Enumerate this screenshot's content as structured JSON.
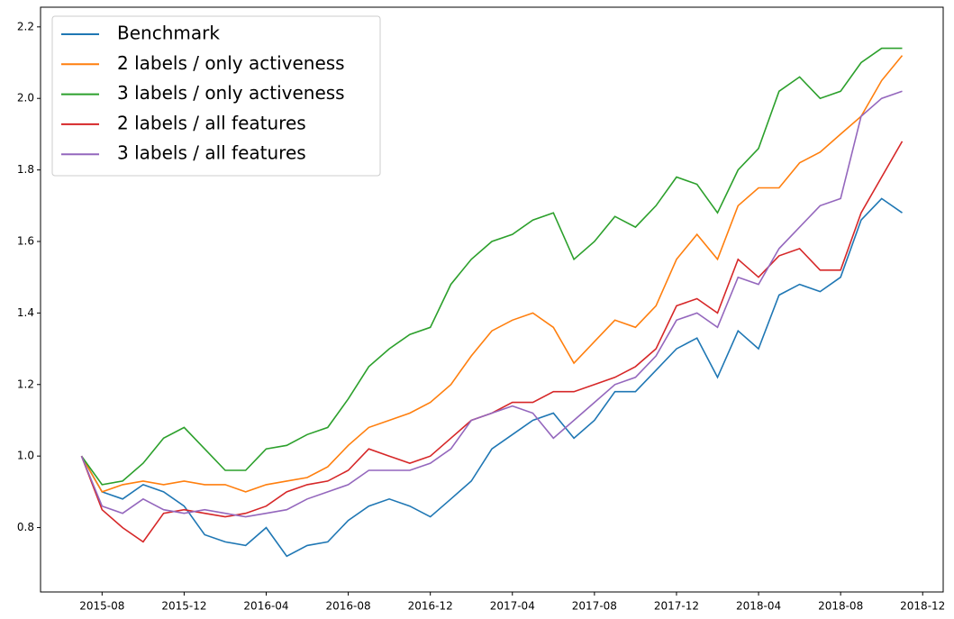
{
  "chart_data": {
    "type": "line",
    "x": [
      "2015-07",
      "2015-08",
      "2015-09",
      "2015-10",
      "2015-11",
      "2015-12",
      "2016-01",
      "2016-02",
      "2016-03",
      "2016-04",
      "2016-05",
      "2016-06",
      "2016-07",
      "2016-08",
      "2016-09",
      "2016-10",
      "2016-11",
      "2016-12",
      "2017-01",
      "2017-02",
      "2017-03",
      "2017-04",
      "2017-05",
      "2017-06",
      "2017-07",
      "2017-08",
      "2017-09",
      "2017-10",
      "2017-11",
      "2017-12",
      "2018-01",
      "2018-02",
      "2018-03",
      "2018-04",
      "2018-05",
      "2018-06",
      "2018-07",
      "2018-08",
      "2018-09",
      "2018-10",
      "2018-11"
    ],
    "series": [
      {
        "name": "Benchmark",
        "color": "#1f77b4",
        "values": [
          1.0,
          0.9,
          0.88,
          0.92,
          0.9,
          0.86,
          0.78,
          0.76,
          0.75,
          0.8,
          0.72,
          0.75,
          0.76,
          0.82,
          0.86,
          0.88,
          0.86,
          0.83,
          0.88,
          0.93,
          1.02,
          1.06,
          1.1,
          1.12,
          1.05,
          1.1,
          1.18,
          1.18,
          1.24,
          1.3,
          1.33,
          1.22,
          1.35,
          1.3,
          1.45,
          1.48,
          1.46,
          1.5,
          1.66,
          1.72,
          1.68
        ]
      },
      {
        "name": "2 labels / only activeness",
        "color": "#ff7f0e",
        "values": [
          1.0,
          0.9,
          0.92,
          0.93,
          0.92,
          0.93,
          0.92,
          0.92,
          0.9,
          0.92,
          0.93,
          0.94,
          0.97,
          1.03,
          1.08,
          1.1,
          1.12,
          1.15,
          1.2,
          1.28,
          1.35,
          1.38,
          1.4,
          1.36,
          1.26,
          1.32,
          1.38,
          1.36,
          1.42,
          1.55,
          1.62,
          1.55,
          1.7,
          1.75,
          1.75,
          1.82,
          1.85,
          1.9,
          1.95,
          2.05,
          2.12
        ]
      },
      {
        "name": "3 labels / only activeness",
        "color": "#2ca02c",
        "values": [
          1.0,
          0.92,
          0.93,
          0.98,
          1.05,
          1.08,
          1.02,
          0.96,
          0.96,
          1.02,
          1.03,
          1.06,
          1.08,
          1.16,
          1.25,
          1.3,
          1.34,
          1.36,
          1.48,
          1.55,
          1.6,
          1.62,
          1.66,
          1.68,
          1.55,
          1.6,
          1.67,
          1.64,
          1.7,
          1.78,
          1.76,
          1.68,
          1.8,
          1.86,
          2.02,
          2.06,
          2.0,
          2.02,
          2.1,
          2.14,
          2.14
        ]
      },
      {
        "name": "2 labels / all features",
        "color": "#d62728",
        "values": [
          1.0,
          0.85,
          0.8,
          0.76,
          0.84,
          0.85,
          0.84,
          0.83,
          0.84,
          0.86,
          0.9,
          0.92,
          0.93,
          0.96,
          1.02,
          1.0,
          0.98,
          1.0,
          1.05,
          1.1,
          1.12,
          1.15,
          1.15,
          1.18,
          1.18,
          1.2,
          1.22,
          1.25,
          1.3,
          1.42,
          1.44,
          1.4,
          1.55,
          1.5,
          1.56,
          1.58,
          1.52,
          1.52,
          1.68,
          1.78,
          1.88
        ]
      },
      {
        "name": "3 labels / all features",
        "color": "#9467bd",
        "values": [
          1.0,
          0.86,
          0.84,
          0.88,
          0.85,
          0.84,
          0.85,
          0.84,
          0.83,
          0.84,
          0.85,
          0.88,
          0.9,
          0.92,
          0.96,
          0.96,
          0.96,
          0.98,
          1.02,
          1.1,
          1.12,
          1.14,
          1.12,
          1.05,
          1.1,
          1.15,
          1.2,
          1.22,
          1.28,
          1.38,
          1.4,
          1.36,
          1.5,
          1.48,
          1.58,
          1.64,
          1.7,
          1.72,
          1.95,
          2.0,
          2.02
        ]
      }
    ],
    "xlim": [
      "2015-05",
      "2019-01"
    ],
    "xticks": [
      "2015-08",
      "2015-12",
      "2016-04",
      "2016-08",
      "2016-12",
      "2017-04",
      "2017-08",
      "2017-12",
      "2018-04",
      "2018-08",
      "2018-12"
    ],
    "ylim": [
      0.62,
      2.255
    ],
    "yticks": [
      0.8,
      {
        "value": 1,
        "label": "1.0"
      },
      1.2,
      1.4,
      1.6,
      1.8,
      {
        "value": 2,
        "label": "2.0"
      },
      2.2
    ],
    "legend": "upper left"
  }
}
